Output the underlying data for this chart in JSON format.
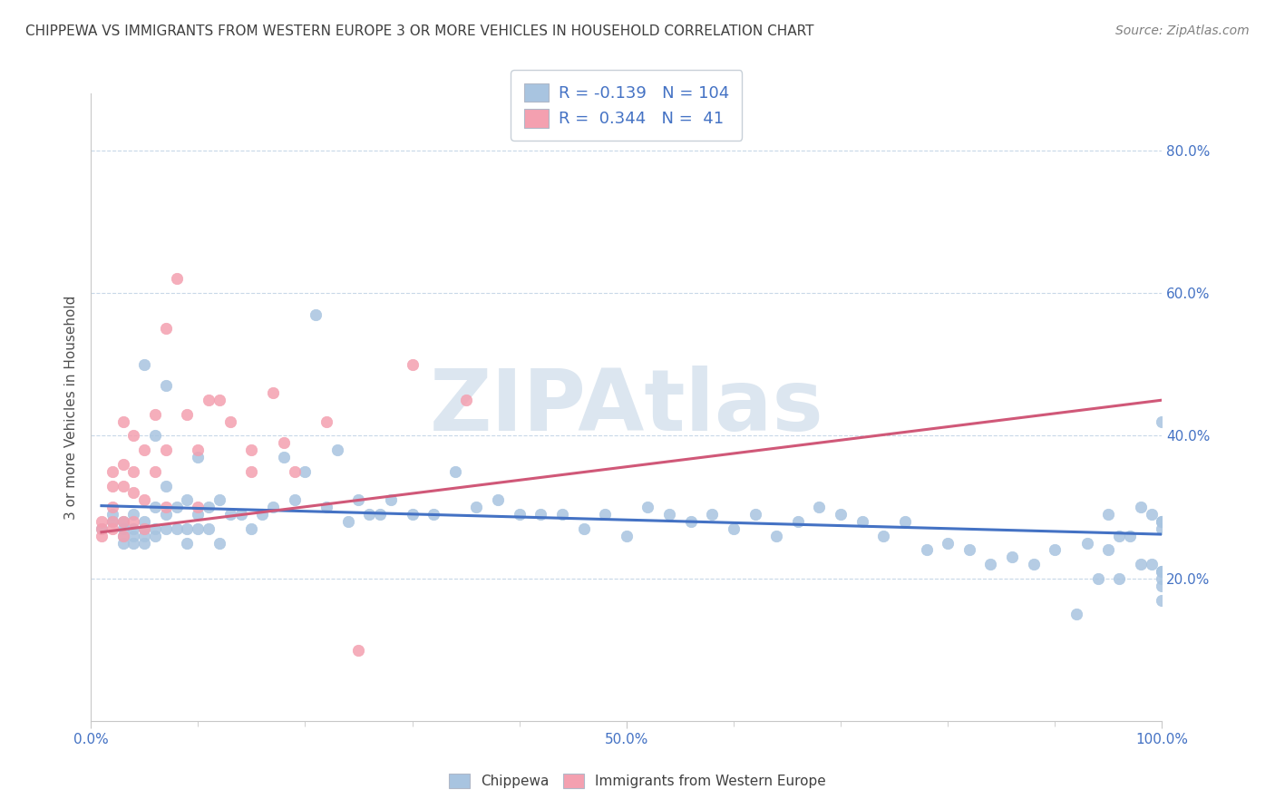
{
  "title": "CHIPPEWA VS IMMIGRANTS FROM WESTERN EUROPE 3 OR MORE VEHICLES IN HOUSEHOLD CORRELATION CHART",
  "source": "Source: ZipAtlas.com",
  "ylabel": "3 or more Vehicles in Household",
  "xlim": [
    0.0,
    1.0
  ],
  "ylim": [
    0.0,
    0.88
  ],
  "chippewa_R": -0.139,
  "chippewa_N": 104,
  "immigrants_R": 0.344,
  "immigrants_N": 41,
  "chippewa_color": "#a8c4e0",
  "immigrants_color": "#f4a0b0",
  "trend_chippewa_color": "#4472c4",
  "trend_immigrants_color": "#d05878",
  "legend_text_color": "#4472c4",
  "watermark": "ZIPAtlas",
  "watermark_color": "#dce6f0",
  "background_color": "#ffffff",
  "grid_color": "#c8d8e8",
  "title_color": "#404040",
  "chippewa_x": [
    0.01,
    0.02,
    0.02,
    0.03,
    0.03,
    0.03,
    0.03,
    0.04,
    0.04,
    0.04,
    0.04,
    0.05,
    0.05,
    0.05,
    0.05,
    0.05,
    0.06,
    0.06,
    0.06,
    0.06,
    0.07,
    0.07,
    0.07,
    0.07,
    0.08,
    0.08,
    0.09,
    0.09,
    0.09,
    0.1,
    0.1,
    0.1,
    0.11,
    0.11,
    0.12,
    0.12,
    0.13,
    0.14,
    0.15,
    0.16,
    0.17,
    0.18,
    0.19,
    0.2,
    0.21,
    0.22,
    0.23,
    0.24,
    0.25,
    0.26,
    0.27,
    0.28,
    0.3,
    0.32,
    0.34,
    0.36,
    0.38,
    0.4,
    0.42,
    0.44,
    0.46,
    0.48,
    0.5,
    0.52,
    0.54,
    0.56,
    0.58,
    0.6,
    0.62,
    0.64,
    0.66,
    0.68,
    0.7,
    0.72,
    0.74,
    0.76,
    0.78,
    0.8,
    0.82,
    0.84,
    0.86,
    0.88,
    0.9,
    0.92,
    0.93,
    0.94,
    0.95,
    0.95,
    0.96,
    0.96,
    0.97,
    0.98,
    0.98,
    0.99,
    0.99,
    1.0,
    1.0,
    1.0,
    1.0,
    1.0,
    1.0,
    1.0,
    1.0,
    1.0
  ],
  "chippewa_y": [
    0.27,
    0.28,
    0.29,
    0.26,
    0.27,
    0.28,
    0.25,
    0.26,
    0.27,
    0.25,
    0.29,
    0.5,
    0.27,
    0.26,
    0.28,
    0.25,
    0.4,
    0.3,
    0.27,
    0.26,
    0.47,
    0.33,
    0.29,
    0.27,
    0.3,
    0.27,
    0.31,
    0.25,
    0.27,
    0.37,
    0.29,
    0.27,
    0.3,
    0.27,
    0.31,
    0.25,
    0.29,
    0.29,
    0.27,
    0.29,
    0.3,
    0.37,
    0.31,
    0.35,
    0.57,
    0.3,
    0.38,
    0.28,
    0.31,
    0.29,
    0.29,
    0.31,
    0.29,
    0.29,
    0.35,
    0.3,
    0.31,
    0.29,
    0.29,
    0.29,
    0.27,
    0.29,
    0.26,
    0.3,
    0.29,
    0.28,
    0.29,
    0.27,
    0.29,
    0.26,
    0.28,
    0.3,
    0.29,
    0.28,
    0.26,
    0.28,
    0.24,
    0.25,
    0.24,
    0.22,
    0.23,
    0.22,
    0.24,
    0.15,
    0.25,
    0.2,
    0.24,
    0.29,
    0.2,
    0.26,
    0.26,
    0.3,
    0.22,
    0.29,
    0.22,
    0.42,
    0.27,
    0.21,
    0.2,
    0.17,
    0.21,
    0.28,
    0.28,
    0.19
  ],
  "immigrants_x": [
    0.01,
    0.01,
    0.01,
    0.02,
    0.02,
    0.02,
    0.02,
    0.02,
    0.03,
    0.03,
    0.03,
    0.03,
    0.03,
    0.04,
    0.04,
    0.04,
    0.04,
    0.05,
    0.05,
    0.05,
    0.06,
    0.06,
    0.07,
    0.07,
    0.07,
    0.08,
    0.09,
    0.1,
    0.1,
    0.11,
    0.12,
    0.13,
    0.15,
    0.15,
    0.17,
    0.18,
    0.19,
    0.22,
    0.25,
    0.3,
    0.35
  ],
  "immigrants_y": [
    0.27,
    0.28,
    0.26,
    0.35,
    0.3,
    0.28,
    0.33,
    0.27,
    0.42,
    0.36,
    0.28,
    0.33,
    0.26,
    0.4,
    0.35,
    0.32,
    0.28,
    0.38,
    0.31,
    0.27,
    0.43,
    0.35,
    0.55,
    0.38,
    0.3,
    0.62,
    0.43,
    0.38,
    0.3,
    0.45,
    0.45,
    0.42,
    0.38,
    0.35,
    0.46,
    0.39,
    0.35,
    0.42,
    0.1,
    0.5,
    0.45
  ],
  "trend_chip_x0": 0.01,
  "trend_chip_x1": 1.0,
  "trend_chip_y0": 0.302,
  "trend_chip_y1": 0.262,
  "trend_imm_x0": 0.01,
  "trend_imm_x1": 1.0,
  "trend_imm_y0": 0.265,
  "trend_imm_y1": 0.45
}
